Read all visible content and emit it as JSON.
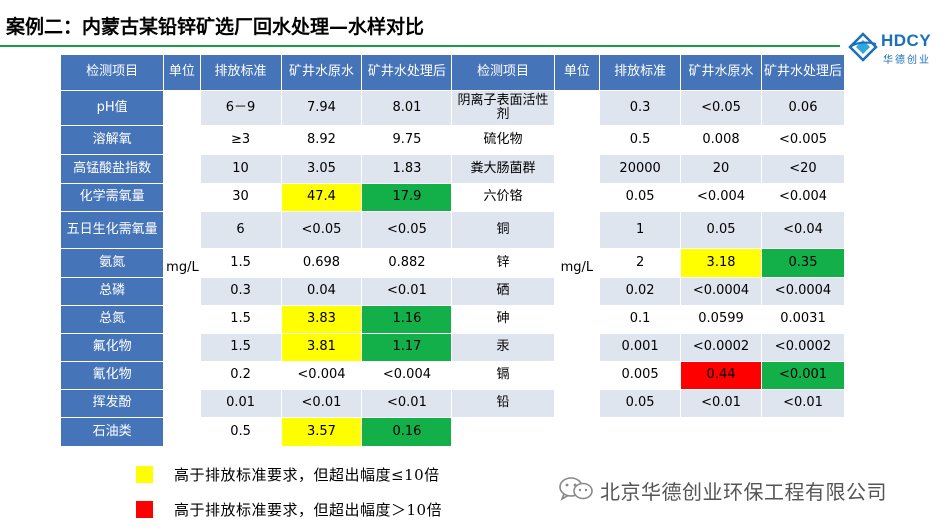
{
  "title": "案例二：内蒙古某铅锌矿选厂回水处理—水样对比",
  "logo": {
    "text": "HDCY",
    "sub": "华德创业"
  },
  "table": {
    "headers": [
      "检测项目",
      "单位",
      "排放标准",
      "矿井水原水",
      "矿井水处理后",
      "检测项目",
      "单位",
      "排放标准",
      "矿井水原水",
      "矿井水处理后"
    ],
    "unit": "mg/L",
    "rows": [
      {
        "l": [
          "pH值",
          "6－9",
          "7.94",
          "8.01"
        ],
        "r": [
          "阴离子表面活性剂",
          "0.3",
          "<0.05",
          "0.06"
        ]
      },
      {
        "l": [
          "溶解氧",
          "≥3",
          "8.92",
          "9.75"
        ],
        "r": [
          "硫化物",
          "0.5",
          "0.008",
          "<0.005"
        ]
      },
      {
        "l": [
          "高锰酸盐指数",
          "10",
          "3.05",
          "1.83"
        ],
        "r": [
          "粪大肠菌群",
          "20000",
          "20",
          "<20"
        ]
      },
      {
        "l": [
          "化学需氧量",
          "30",
          "47.4",
          "17.9"
        ],
        "r": [
          "六价铬",
          "0.05",
          "<0.004",
          "<0.004"
        ]
      },
      {
        "l": [
          "五日生化需氧量",
          "6",
          "<0.05",
          "<0.05"
        ],
        "r": [
          "铜",
          "1",
          "0.05",
          "<0.04"
        ]
      },
      {
        "l": [
          "氨氮",
          "1.5",
          "0.698",
          "0.882"
        ],
        "r": [
          "锌",
          "2",
          "3.18",
          "0.35"
        ]
      },
      {
        "l": [
          "总磷",
          "0.3",
          "0.04",
          "<0.01"
        ],
        "r": [
          "硒",
          "0.02",
          "<0.0004",
          "<0.0004"
        ]
      },
      {
        "l": [
          "总氮",
          "1.5",
          "3.83",
          "1.16"
        ],
        "r": [
          "砷",
          "0.1",
          "0.0599",
          "0.0031"
        ]
      },
      {
        "l": [
          "氟化物",
          "1.5",
          "3.81",
          "1.17"
        ],
        "r": [
          "汞",
          "0.001",
          "<0.0002",
          "<0.0002"
        ]
      },
      {
        "l": [
          "氰化物",
          "0.2",
          "<0.004",
          "<0.004"
        ],
        "r": [
          "镉",
          "0.005",
          "0.44",
          "<0.001"
        ]
      },
      {
        "l": [
          "挥发酚",
          "0.01",
          "<0.01",
          "<0.01"
        ],
        "r": [
          "铅",
          "0.05",
          "<0.01",
          "<0.01"
        ]
      },
      {
        "l": [
          "石油类",
          "0.5",
          "3.57",
          "0.16"
        ],
        "r": [
          "",
          "",
          "",
          ""
        ]
      }
    ],
    "highlight_colors": {
      "yellow": "#ffff00",
      "green": "#13b04a",
      "red": "#ff0000"
    }
  },
  "legend": [
    {
      "color": "#ffff00",
      "text": "高于排放标准要求，但超出幅度≤10倍"
    },
    {
      "color": "#ff0000",
      "text": "高于排放标准要求，但超出幅度＞10倍"
    }
  ],
  "company": {
    "name": "北京华德创业环保工程有限公司"
  }
}
